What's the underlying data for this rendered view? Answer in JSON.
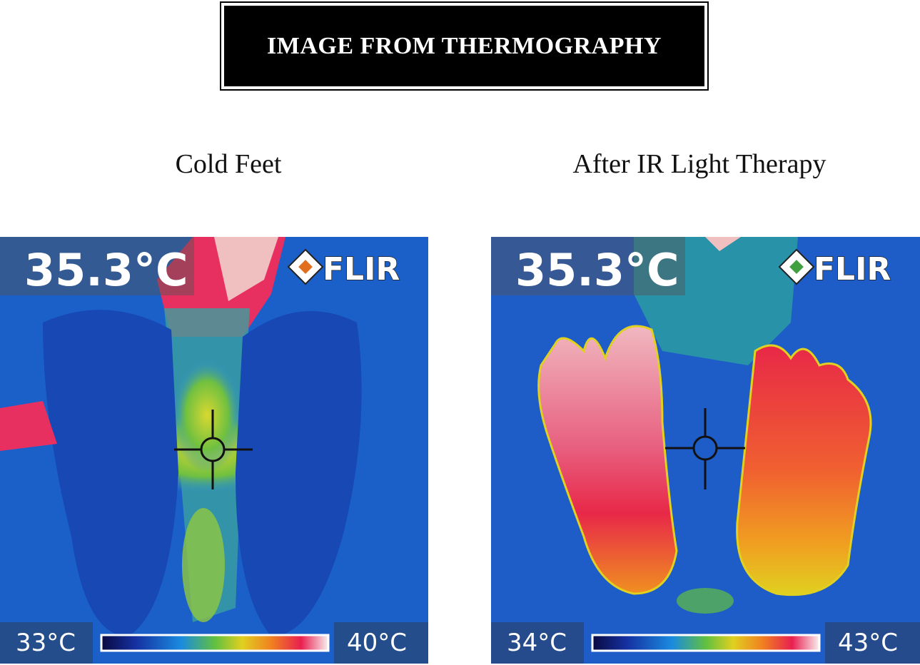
{
  "header": {
    "title": "IMAGE FROM THERMOGRAPHY"
  },
  "panels": [
    {
      "caption": "Cold Feet",
      "reading": "35.3°C",
      "brand": "FLIR",
      "scale_min": "33°C",
      "scale_max": "40°C"
    },
    {
      "caption": "After IR Light Therapy",
      "reading": "35.3°C",
      "brand": "FLIR",
      "scale_min": "34°C",
      "scale_max": "43°C"
    }
  ]
}
